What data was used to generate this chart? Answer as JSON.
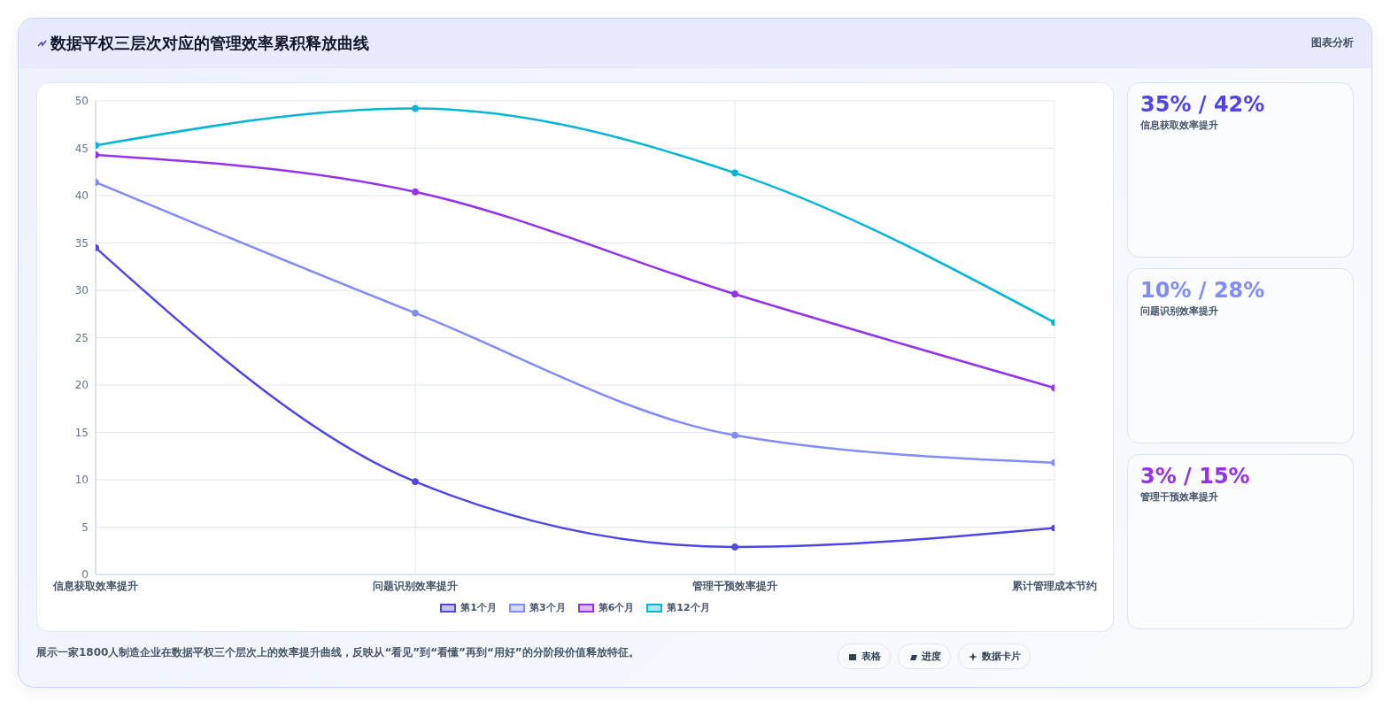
{
  "chart_data": [
    {
      "type": "line",
      "title": "数据平权三层次对应的管理效率累积释放曲线",
      "categories": [
        "信息获取效率提升",
        "问题识别效率提升",
        "管理干预效率提升",
        "累计管理成本节约"
      ],
      "series": [
        {
          "name": "第1个月",
          "color": "#4f46e5",
          "values": [
            34.5,
            9.8,
            2.9,
            4.9
          ]
        },
        {
          "name": "第3个月",
          "color": "#818cf8",
          "values": [
            41.4,
            27.6,
            14.7,
            11.8
          ]
        },
        {
          "name": "第6个月",
          "color": "#9333ea",
          "values": [
            44.3,
            40.4,
            29.6,
            19.7
          ]
        },
        {
          "name": "第12个月",
          "color": "#06b6d4",
          "values": [
            45.3,
            49.2,
            42.4,
            26.6
          ]
        }
      ],
      "ylim": [
        0,
        50
      ],
      "yticks": [
        0,
        5,
        10,
        15,
        20,
        25,
        30,
        35,
        40,
        45,
        50
      ],
      "grid": true,
      "legend": "bottom",
      "marker": "circle",
      "line_style": "solid",
      "annotations": [
        "展示一家1800人制造企业在数据平权三个层次上的效率提升曲线，反映从“看见”到“看懂”再到“用好”的分阶段价值释放特征。",
        "图表分析",
        "表格",
        "进度",
        "数据卡片"
      ]
    },
    {
      "type": "other",
      "colors": [
        "#4f46e5",
        "#818cf8",
        "#9333ea"
      ],
      "annotations": [
        "35% / 42%",
        "信息获取效率提升",
        "10% / 28%",
        "问题识别效率提升",
        "3% / 15%",
        "管理干预效率提升"
      ]
    }
  ]
}
